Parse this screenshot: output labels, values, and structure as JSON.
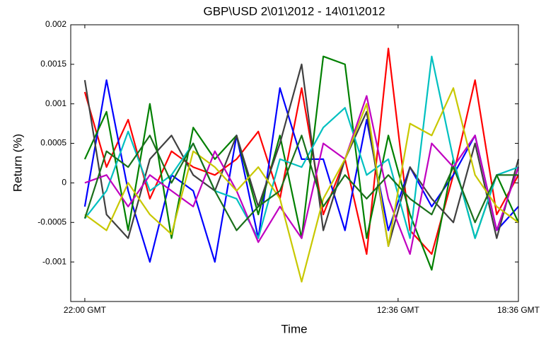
{
  "chart_data": {
    "type": "line",
    "title": "GBP\\USD 2\\01\\2012 - 14\\01\\2012",
    "xlabel": "Time",
    "ylabel": "Return (%)",
    "x": [
      0,
      1,
      2,
      3,
      4,
      5,
      6,
      7,
      8,
      9,
      10,
      11,
      12,
      13,
      14,
      15,
      16,
      17,
      18,
      19,
      20
    ],
    "xlim": [
      -0.65,
      20
    ],
    "xticks": [
      {
        "value": 0,
        "label": "22:00 GMT"
      },
      {
        "value": 14.45,
        "label": "12:36 GMT"
      },
      {
        "value": 20,
        "label": "18:36 GMT"
      }
    ],
    "ylim": [
      -0.0015,
      0.002
    ],
    "yticks": [
      -0.001,
      -0.0005,
      0,
      0.0005,
      0.001,
      0.0015,
      0.002
    ],
    "grid": false,
    "series": [
      {
        "color": "#ff0000",
        "values": [
          0.00115,
          0.0002,
          0.0008,
          -0.0002,
          0.0004,
          0.0002,
          0.0001,
          0.0003,
          0.00065,
          -0.0002,
          0.0012,
          -0.0004,
          0.0003,
          -0.0009,
          0.0017,
          -0.0006,
          -0.0009,
          0.0001,
          0.0013,
          -0.0004,
          0.0001
        ]
      },
      {
        "color": "#0000ff",
        "values": [
          -0.0003,
          0.0013,
          -0.0001,
          -0.001,
          0.0001,
          -0.0001,
          -0.001,
          0.0006,
          -0.0007,
          0.0012,
          0.0003,
          0.0003,
          -0.0006,
          0.0008,
          -0.0006,
          0.0002,
          -0.0003,
          0.0001,
          0.0006,
          -0.0006,
          -0.0003
        ]
      },
      {
        "color": "#008000",
        "values": [
          0.0003,
          0.0009,
          -0.0006,
          0.001,
          -0.0007,
          0.0007,
          0.0003,
          0.0006,
          -0.0004,
          0.0006,
          -0.0007,
          0.0016,
          0.0015,
          -0.0007,
          0.0006,
          -0.0004,
          -0.0011,
          0.0003,
          -0.0007,
          0.0001,
          -0.0005
        ]
      },
      {
        "color": "#404040",
        "values": [
          0.0013,
          -0.0004,
          -0.0007,
          0.0003,
          0.0006,
          0.0001,
          -0.0001,
          0.0006,
          -0.0003,
          0.0005,
          0.0015,
          -0.0006,
          0.0003,
          0.0009,
          -0.0008,
          0.0002,
          -0.0002,
          -0.0005,
          0.0005,
          -0.0007,
          0.0003
        ]
      },
      {
        "color": "#00c0c0",
        "values": [
          -0.00045,
          -0.0001,
          0.00065,
          -0.0001,
          0.0001,
          0.0005,
          -0.0001,
          -0.0002,
          -0.0007,
          0.0003,
          0.0002,
          0.0007,
          0.00095,
          0.0001,
          0.0003,
          -0.0007,
          0.0016,
          0.0003,
          -0.0007,
          0.0001,
          0.0002
        ]
      },
      {
        "color": "#c000c0",
        "values": [
          0,
          0.0001,
          -0.0003,
          0.0001,
          -0.0001,
          -0.0003,
          0.0004,
          -0.0001,
          -0.00075,
          -0.0003,
          -0.0007,
          0.0005,
          0.0003,
          0.0011,
          -0.0002,
          -0.0009,
          0.0005,
          0.0002,
          0.0006,
          -0.0006,
          0.0002
        ]
      },
      {
        "color": "#c8c800",
        "values": [
          -0.0004,
          -0.0006,
          0,
          -0.0004,
          -0.00065,
          0.0004,
          0.0002,
          -0.0001,
          0.0002,
          -0.0002,
          -0.00125,
          -0.0002,
          0.0003,
          0.001,
          -0.0008,
          0.00075,
          0.0006,
          0.0012,
          0.0001,
          -0.0003,
          -0.0005
        ]
      },
      {
        "color": "#1a6f1a",
        "values": [
          -0.00045,
          0.0004,
          0.0002,
          0.0006,
          0,
          0.0005,
          -0.0001,
          -0.0006,
          -0.0003,
          -0.0001,
          0.0006,
          -0.0003,
          0.0001,
          -0.0002,
          0.0001,
          -0.0002,
          -0.0004,
          0.0002,
          -0.0005,
          0.0001,
          0.0001
        ]
      }
    ]
  }
}
